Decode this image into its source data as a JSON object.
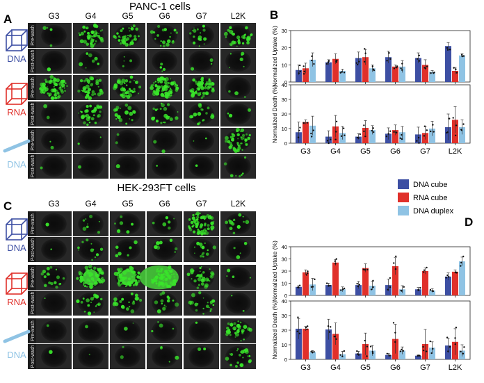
{
  "panels": {
    "A": {
      "letter": "A",
      "title": "PANC-1 cells"
    },
    "B": {
      "letter": "B"
    },
    "C": {
      "letter": "C",
      "title": "HEK-293FT cells"
    },
    "D": {
      "letter": "D"
    }
  },
  "columns": [
    "G3",
    "G4",
    "G5",
    "G6",
    "G7",
    "L2K"
  ],
  "row_labels": [
    "Pre-wash",
    "Post-wash"
  ],
  "constructs": [
    {
      "label": "DNA",
      "color": "#3d4fa3",
      "icon": "dna-cube-icon"
    },
    {
      "label": "RNA",
      "color": "#e0302a",
      "icon": "rna-cube-icon"
    },
    {
      "label": "DNA",
      "color": "#8fc3e4",
      "icon": "dna-duplex-icon"
    }
  ],
  "microscopy": {
    "A": [
      [
        0.05,
        0.6,
        0.55,
        0.3,
        0.25,
        0.5
      ],
      [
        0.02,
        0.1,
        0.06,
        0.05,
        0.04,
        0.08
      ],
      [
        0.95,
        0.5,
        0.55,
        0.95,
        0.9,
        0.04
      ],
      [
        0.03,
        0.45,
        0.3,
        0.3,
        0.25,
        0.04
      ],
      [
        0.03,
        0.03,
        0.03,
        0.03,
        0.03,
        0.6
      ],
      [
        0.02,
        0.02,
        0.02,
        0.02,
        0.02,
        0.1
      ]
    ],
    "C": [
      [
        0.02,
        0.12,
        0.1,
        0.08,
        0.85,
        0.2
      ],
      [
        0.02,
        0.15,
        0.1,
        0.1,
        0.2,
        0.05
      ],
      [
        0.25,
        0.9,
        0.95,
        1.0,
        0.5,
        0.05
      ],
      [
        0.02,
        0.3,
        0.3,
        0.2,
        0.3,
        0.03
      ],
      [
        0.02,
        0.02,
        0.03,
        0.05,
        0.02,
        0.5
      ],
      [
        0.02,
        0.02,
        0.03,
        0.05,
        0.03,
        0.3
      ]
    ]
  },
  "legend": {
    "items": [
      "DNA cube",
      "RNA cube",
      "DNA duplex"
    ],
    "colors": [
      "#3d4fa3",
      "#e0302a",
      "#8fc3e4"
    ]
  },
  "chart_data": [
    {
      "id": "B-uptake",
      "type": "bar",
      "ylabel": "Normalized Uptake (%)",
      "ylim": [
        0,
        30
      ],
      "yticks": [
        0,
        10,
        20,
        30
      ],
      "categories": [
        "G3",
        "G4",
        "G5",
        "G6",
        "G7",
        "L2K"
      ],
      "series": [
        {
          "name": "DNA cube",
          "values": [
            7,
            11.5,
            14,
            14.5,
            14,
            21
          ],
          "errors": [
            3,
            1.5,
            3.5,
            3.5,
            3,
            2
          ]
        },
        {
          "name": "RNA cube",
          "values": [
            8,
            13.5,
            14.5,
            9,
            10,
            6.5
          ],
          "errors": [
            3,
            3,
            4.5,
            1,
            3,
            2
          ]
        },
        {
          "name": "DNA duplex",
          "values": [
            13,
            6.5,
            8,
            9,
            6,
            15.5
          ],
          "errors": [
            4,
            1,
            2,
            3.5,
            0.7,
            1
          ]
        }
      ]
    },
    {
      "id": "B-death",
      "type": "bar",
      "ylabel": "Normalized Death (%)",
      "ylim": [
        0,
        40
      ],
      "yticks": [
        0,
        10,
        20,
        30,
        40
      ],
      "categories": [
        "G3",
        "G4",
        "G5",
        "G6",
        "G7",
        "L2K"
      ],
      "series": [
        {
          "name": "DNA cube",
          "values": [
            7.5,
            4.5,
            4.5,
            6.5,
            6,
            11
          ],
          "errors": [
            7,
            4,
            2,
            4,
            5,
            9
          ]
        },
        {
          "name": "RNA cube",
          "values": [
            14.5,
            11.5,
            10.5,
            9,
            7,
            16
          ],
          "errors": [
            1.5,
            7.5,
            5,
            3.5,
            4.5,
            9
          ]
        },
        {
          "name": "DNA duplex",
          "values": [
            12,
            7,
            9,
            7.5,
            10,
            11
          ],
          "errors": [
            6.5,
            4.5,
            3,
            4,
            5,
            5
          ]
        }
      ]
    },
    {
      "id": "D-uptake",
      "type": "bar",
      "ylabel": "Normalized Uptake (%)",
      "ylim": [
        0,
        40
      ],
      "yticks": [
        0,
        10,
        20,
        30,
        40
      ],
      "categories": [
        "G3",
        "G4",
        "G5",
        "G6",
        "G7",
        "L2K"
      ],
      "series": [
        {
          "name": "DNA cube",
          "values": [
            7,
            8.5,
            8.5,
            8.5,
            5,
            15.5
          ],
          "errors": [
            1,
            1.5,
            3,
            5,
            1.5,
            3
          ]
        },
        {
          "name": "RNA cube",
          "values": [
            19,
            27,
            22.5,
            24,
            20,
            19.5
          ],
          "errors": [
            2,
            2.5,
            3.5,
            7,
            2.5,
            1.5
          ]
        },
        {
          "name": "DNA duplex",
          "values": [
            9,
            5,
            8,
            5,
            4,
            28
          ],
          "errors": [
            5,
            2,
            3.5,
            3,
            1.5,
            3.5
          ]
        }
      ]
    },
    {
      "id": "D-death",
      "type": "bar",
      "ylabel": "Normalized Death (%)",
      "ylim": [
        0,
        40
      ],
      "yticks": [
        0,
        10,
        20,
        30,
        40
      ],
      "categories": [
        "G3",
        "G4",
        "G5",
        "G6",
        "G7",
        "L2K"
      ],
      "series": [
        {
          "name": "DNA cube",
          "values": [
            21,
            20.5,
            4,
            3,
            2.5,
            9.5
          ],
          "errors": [
            7,
            7,
            1.5,
            1,
            0.5,
            5
          ]
        },
        {
          "name": "RNA cube",
          "values": [
            21,
            17.5,
            10.5,
            14,
            10.5,
            12
          ],
          "errors": [
            1.5,
            7.5,
            7.5,
            10,
            10,
            9
          ]
        },
        {
          "name": "DNA duplex",
          "values": [
            5,
            3.5,
            6,
            6,
            8,
            6
          ],
          "errors": [
            1,
            2,
            3.5,
            2.5,
            4,
            4
          ]
        }
      ]
    }
  ]
}
